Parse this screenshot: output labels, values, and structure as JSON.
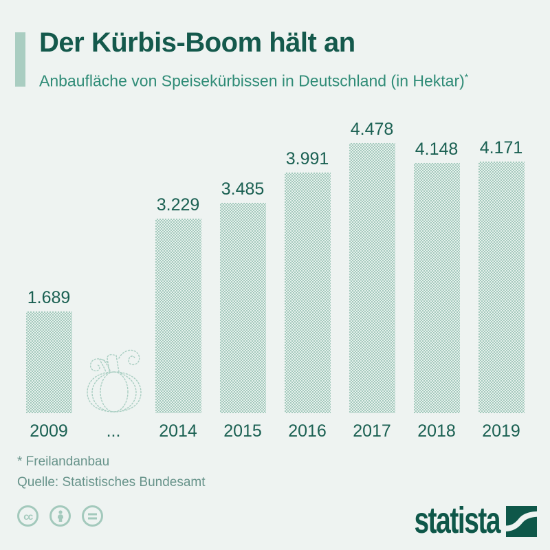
{
  "page": {
    "background_color": "#eef3f1"
  },
  "header": {
    "title": "Der Kürbis-Boom hält an",
    "subtitle": "Anbaufläche von Speisekürbissen in Deutschland (in Hektar)",
    "footnote_marker": "*",
    "accent_color": "#a9cdc1",
    "title_color": "#14594c",
    "subtitle_color": "#2e8b76"
  },
  "chart_data": {
    "type": "bar",
    "title": "Der Kürbis-Boom hält an",
    "subtitle": "Anbaufläche von Speisekürbissen in Deutschland (in Hektar)*",
    "unit": "Hektar",
    "categories": [
      "2009",
      "...",
      "2014",
      "2015",
      "2016",
      "2017",
      "2018",
      "2019"
    ],
    "values": [
      1689,
      null,
      3229,
      3485,
      3991,
      4478,
      4148,
      4171
    ],
    "value_labels": [
      "1.689",
      null,
      "3.229",
      "3.485",
      "3.991",
      "4.478",
      "4.148",
      "4.171"
    ],
    "ylim": [
      0,
      4478
    ],
    "grid": false,
    "legend": false,
    "bar_color": "#c5ddd4",
    "label_color": "#1a6052",
    "gap_illustration": "pumpkin-outline"
  },
  "footer": {
    "footnote": "* Freilandanbau",
    "source": "Quelle: Statistisches Bundesamt",
    "text_color": "#67938a"
  },
  "license": {
    "color": "#a3c9bc",
    "icons": [
      {
        "name": "creative-commons",
        "label": "cc"
      },
      {
        "name": "attribution-person"
      },
      {
        "name": "no-derivatives-equals"
      }
    ]
  },
  "brand": {
    "wordmark": "statista",
    "color": "#0e5749"
  }
}
